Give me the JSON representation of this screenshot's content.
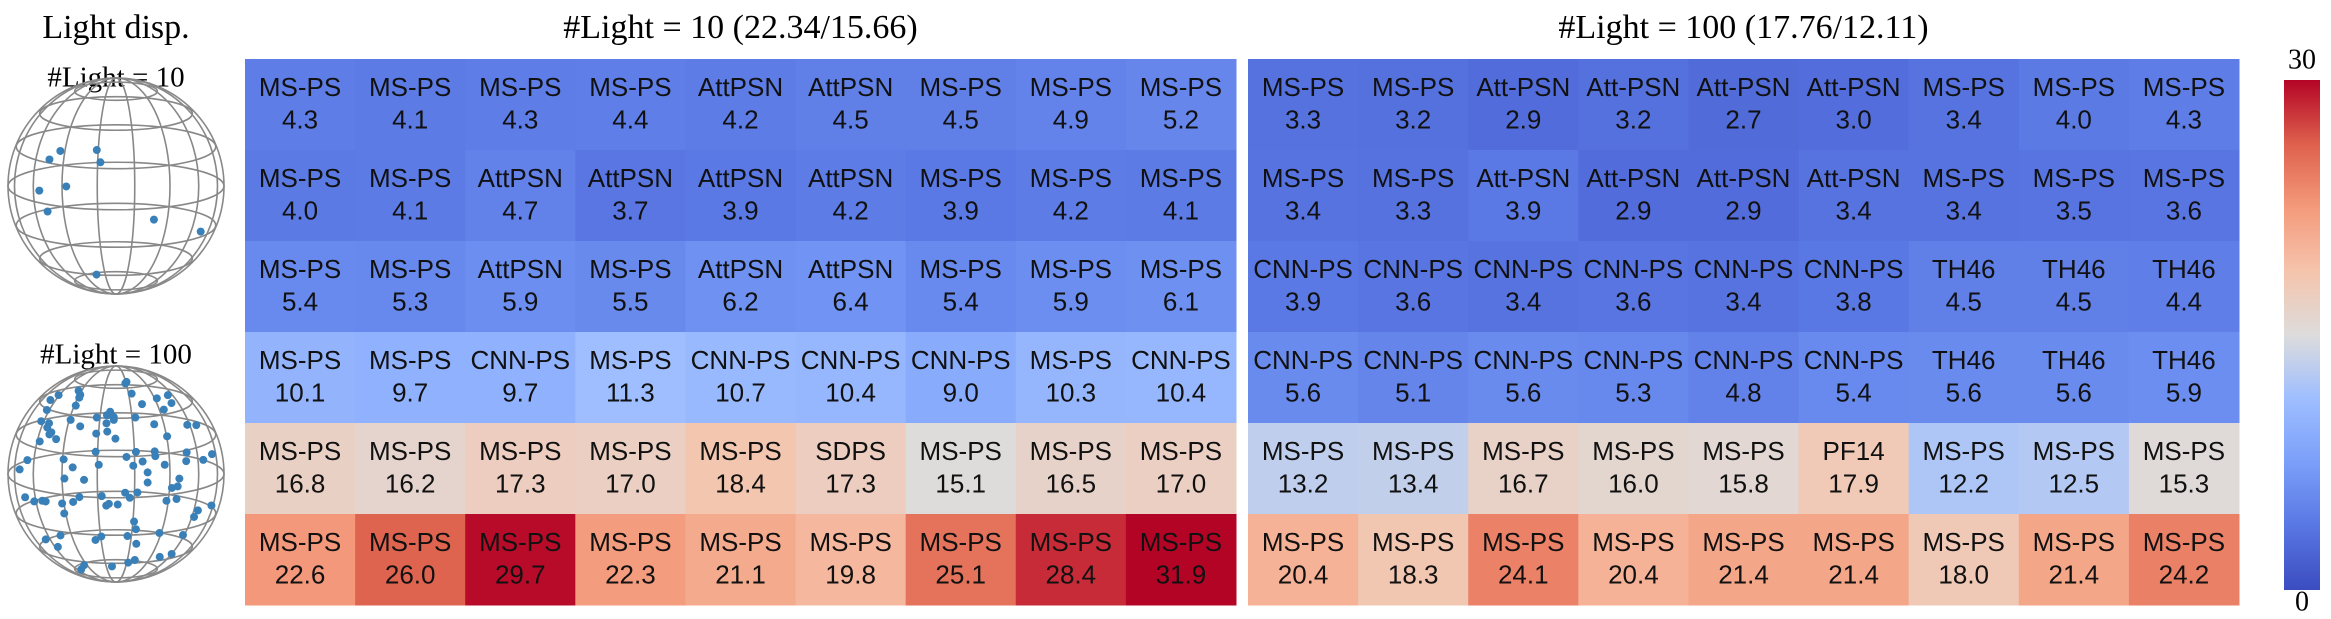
{
  "left": {
    "title": "Light disp.",
    "labels": [
      "#Light = 10",
      "#Light = 100"
    ]
  },
  "colorbar": {
    "min": 0,
    "max": 30
  },
  "panels": [
    {
      "title": "#Light = 10 (22.34/15.66)",
      "rows": [
        [
          [
            "MS-PS",
            "4.3"
          ],
          [
            "MS-PS",
            "4.1"
          ],
          [
            "MS-PS",
            "4.3"
          ],
          [
            "MS-PS",
            "4.4"
          ],
          [
            "AttPSN",
            "4.2"
          ],
          [
            "AttPSN",
            "4.5"
          ],
          [
            "MS-PS",
            "4.5"
          ],
          [
            "MS-PS",
            "4.9"
          ],
          [
            "MS-PS",
            "5.2"
          ]
        ],
        [
          [
            "MS-PS",
            "4.0"
          ],
          [
            "MS-PS",
            "4.1"
          ],
          [
            "AttPSN",
            "4.7"
          ],
          [
            "AttPSN",
            "3.7"
          ],
          [
            "AttPSN",
            "3.9"
          ],
          [
            "AttPSN",
            "4.2"
          ],
          [
            "MS-PS",
            "3.9"
          ],
          [
            "MS-PS",
            "4.2"
          ],
          [
            "MS-PS",
            "4.1"
          ]
        ],
        [
          [
            "MS-PS",
            "5.4"
          ],
          [
            "MS-PS",
            "5.3"
          ],
          [
            "AttPSN",
            "5.9"
          ],
          [
            "MS-PS",
            "5.5"
          ],
          [
            "AttPSN",
            "6.2"
          ],
          [
            "AttPSN",
            "6.4"
          ],
          [
            "MS-PS",
            "5.4"
          ],
          [
            "MS-PS",
            "5.9"
          ],
          [
            "MS-PS",
            "6.1"
          ]
        ],
        [
          [
            "MS-PS",
            "10.1"
          ],
          [
            "MS-PS",
            "9.7"
          ],
          [
            "CNN-PS",
            "9.7"
          ],
          [
            "MS-PS",
            "11.3"
          ],
          [
            "CNN-PS",
            "10.7"
          ],
          [
            "CNN-PS",
            "10.4"
          ],
          [
            "CNN-PS",
            "9.0"
          ],
          [
            "MS-PS",
            "10.3"
          ],
          [
            "CNN-PS",
            "10.4"
          ]
        ],
        [
          [
            "MS-PS",
            "16.8"
          ],
          [
            "MS-PS",
            "16.2"
          ],
          [
            "MS-PS",
            "17.3"
          ],
          [
            "MS-PS",
            "17.0"
          ],
          [
            "MS-PS",
            "18.4"
          ],
          [
            "SDPS",
            "17.3"
          ],
          [
            "MS-PS",
            "15.1"
          ],
          [
            "MS-PS",
            "16.5"
          ],
          [
            "MS-PS",
            "17.0"
          ]
        ],
        [
          [
            "MS-PS",
            "22.6"
          ],
          [
            "MS-PS",
            "26.0"
          ],
          [
            "MS-PS",
            "29.7"
          ],
          [
            "MS-PS",
            "22.3"
          ],
          [
            "MS-PS",
            "21.1"
          ],
          [
            "MS-PS",
            "19.8"
          ],
          [
            "MS-PS",
            "25.1"
          ],
          [
            "MS-PS",
            "28.4"
          ],
          [
            "MS-PS",
            "31.9"
          ]
        ]
      ]
    },
    {
      "title": "#Light = 100 (17.76/12.11)",
      "rows": [
        [
          [
            "MS-PS",
            "3.3"
          ],
          [
            "MS-PS",
            "3.2"
          ],
          [
            "Att-PSN",
            "2.9"
          ],
          [
            "Att-PSN",
            "3.2"
          ],
          [
            "Att-PSN",
            "2.7"
          ],
          [
            "Att-PSN",
            "3.0"
          ],
          [
            "MS-PS",
            "3.4"
          ],
          [
            "MS-PS",
            "4.0"
          ],
          [
            "MS-PS",
            "4.3"
          ]
        ],
        [
          [
            "MS-PS",
            "3.4"
          ],
          [
            "MS-PS",
            "3.3"
          ],
          [
            "Att-PSN",
            "3.9"
          ],
          [
            "Att-PSN",
            "2.9"
          ],
          [
            "Att-PSN",
            "2.9"
          ],
          [
            "Att-PSN",
            "3.4"
          ],
          [
            "MS-PS",
            "3.4"
          ],
          [
            "MS-PS",
            "3.5"
          ],
          [
            "MS-PS",
            "3.6"
          ]
        ],
        [
          [
            "CNN-PS",
            "3.9"
          ],
          [
            "CNN-PS",
            "3.6"
          ],
          [
            "CNN-PS",
            "3.4"
          ],
          [
            "CNN-PS",
            "3.6"
          ],
          [
            "CNN-PS",
            "3.4"
          ],
          [
            "CNN-PS",
            "3.8"
          ],
          [
            "TH46",
            "4.5"
          ],
          [
            "TH46",
            "4.5"
          ],
          [
            "TH46",
            "4.4"
          ]
        ],
        [
          [
            "CNN-PS",
            "5.6"
          ],
          [
            "CNN-PS",
            "5.1"
          ],
          [
            "CNN-PS",
            "5.6"
          ],
          [
            "CNN-PS",
            "5.3"
          ],
          [
            "CNN-PS",
            "4.8"
          ],
          [
            "CNN-PS",
            "5.4"
          ],
          [
            "TH46",
            "5.6"
          ],
          [
            "TH46",
            "5.6"
          ],
          [
            "TH46",
            "5.9"
          ]
        ],
        [
          [
            "MS-PS",
            "13.2"
          ],
          [
            "MS-PS",
            "13.4"
          ],
          [
            "MS-PS",
            "16.7"
          ],
          [
            "MS-PS",
            "16.0"
          ],
          [
            "MS-PS",
            "15.8"
          ],
          [
            "PF14",
            "17.9"
          ],
          [
            "MS-PS",
            "12.2"
          ],
          [
            "MS-PS",
            "12.5"
          ],
          [
            "MS-PS",
            "15.3"
          ]
        ],
        [
          [
            "MS-PS",
            "20.4"
          ],
          [
            "MS-PS",
            "18.3"
          ],
          [
            "MS-PS",
            "24.1"
          ],
          [
            "MS-PS",
            "20.4"
          ],
          [
            "MS-PS",
            "21.4"
          ],
          [
            "MS-PS",
            "21.4"
          ],
          [
            "MS-PS",
            "18.0"
          ],
          [
            "MS-PS",
            "21.4"
          ],
          [
            "MS-PS",
            "24.2"
          ]
        ]
      ]
    }
  ]
}
